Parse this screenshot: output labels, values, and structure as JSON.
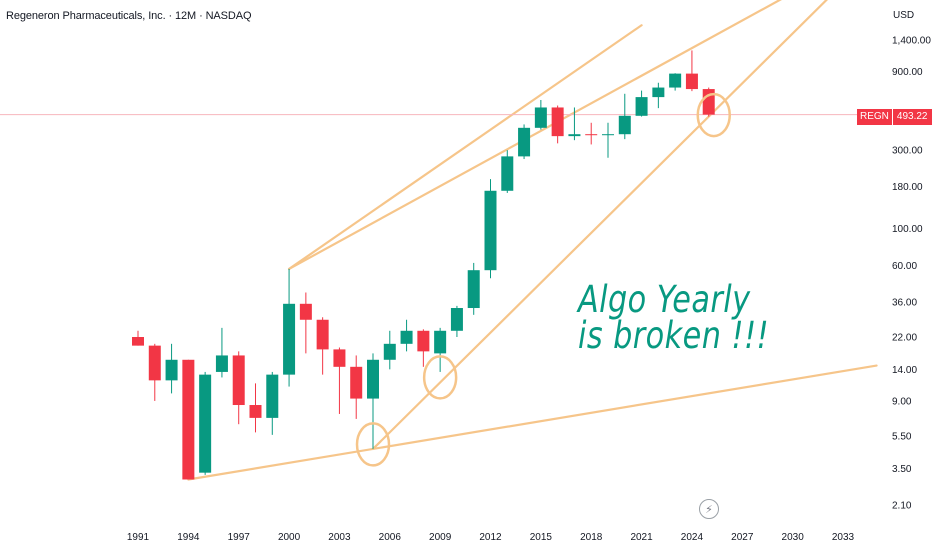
{
  "header": {
    "title": "Regeneron Pharmaceuticals, Inc. · 12M · NASDAQ",
    "currency": "USD"
  },
  "price_tag": {
    "symbol": "REGN",
    "value": "493.22"
  },
  "annotation": {
    "line1": "Algo Yearly",
    "line2": "is broken !!!"
  },
  "icons": {
    "bolt": "lightning-icon"
  },
  "colors": {
    "up": "#089981",
    "down": "#f23645",
    "trendline": "#f6c58a",
    "annotation": "#089981",
    "price_line": "#f7b6bd"
  },
  "chart_data": {
    "type": "candlestick",
    "title": "Regeneron Pharmaceuticals, Inc. · 12M · NASDAQ",
    "y_scale": "log",
    "ylabel": "USD",
    "y_ticks": [
      "1,400.00",
      "900.00",
      "300.00",
      "180.00",
      "100.00",
      "60.00",
      "36.00",
      "22.00",
      "14.00",
      "9.00",
      "5.50",
      "3.50",
      "2.10"
    ],
    "x_ticks": [
      "1991",
      "1994",
      "1997",
      "2000",
      "2003",
      "2006",
      "2009",
      "2012",
      "2015",
      "2018",
      "2021",
      "2024",
      "2027",
      "2030",
      "2033"
    ],
    "last_price": 493.22,
    "candles": [
      {
        "year": 1991,
        "open": 22,
        "high": 24,
        "low": 19.5,
        "close": 19.5
      },
      {
        "year": 1992,
        "open": 19.5,
        "high": 20,
        "low": 9,
        "close": 12
      },
      {
        "year": 1993,
        "open": 12,
        "high": 20,
        "low": 10,
        "close": 16
      },
      {
        "year": 1994,
        "open": 16,
        "high": 16,
        "low": 3,
        "close": 3
      },
      {
        "year": 1995,
        "open": 3.3,
        "high": 13.5,
        "low": 3.2,
        "close": 13
      },
      {
        "year": 1996,
        "open": 13.5,
        "high": 25,
        "low": 12.5,
        "close": 17
      },
      {
        "year": 1997,
        "open": 17,
        "high": 18,
        "low": 6.5,
        "close": 8.5
      },
      {
        "year": 1998,
        "open": 8.5,
        "high": 11.5,
        "low": 5.8,
        "close": 7.1
      },
      {
        "year": 1999,
        "open": 7.1,
        "high": 13.5,
        "low": 5.6,
        "close": 13
      },
      {
        "year": 2000,
        "open": 13,
        "high": 57,
        "low": 11,
        "close": 35
      },
      {
        "year": 2001,
        "open": 35,
        "high": 41,
        "low": 17.5,
        "close": 28
      },
      {
        "year": 2002,
        "open": 28,
        "high": 29,
        "low": 13,
        "close": 18.5
      },
      {
        "year": 2003,
        "open": 18.5,
        "high": 19,
        "low": 7.5,
        "close": 14.5
      },
      {
        "year": 2004,
        "open": 14.5,
        "high": 17,
        "low": 7,
        "close": 9.3
      },
      {
        "year": 2005,
        "open": 9.3,
        "high": 17.5,
        "low": 4.6,
        "close": 16
      },
      {
        "year": 2006,
        "open": 16,
        "high": 24,
        "low": 14,
        "close": 20
      },
      {
        "year": 2007,
        "open": 20,
        "high": 28,
        "low": 18,
        "close": 24
      },
      {
        "year": 2008,
        "open": 24,
        "high": 24.5,
        "low": 14.5,
        "close": 18
      },
      {
        "year": 2009,
        "open": 17.5,
        "high": 25,
        "low": 13.5,
        "close": 24
      },
      {
        "year": 2010,
        "open": 24,
        "high": 34,
        "low": 22,
        "close": 33
      },
      {
        "year": 2011,
        "open": 33,
        "high": 62,
        "low": 30,
        "close": 56
      },
      {
        "year": 2012,
        "open": 56,
        "high": 200,
        "low": 50,
        "close": 170
      },
      {
        "year": 2013,
        "open": 170,
        "high": 300,
        "low": 165,
        "close": 275
      },
      {
        "year": 2014,
        "open": 275,
        "high": 430,
        "low": 265,
        "close": 410
      },
      {
        "year": 2015,
        "open": 410,
        "high": 605,
        "low": 400,
        "close": 545
      },
      {
        "year": 2016,
        "open": 545,
        "high": 560,
        "low": 330,
        "close": 365
      },
      {
        "year": 2017,
        "open": 365,
        "high": 545,
        "low": 345,
        "close": 375
      },
      {
        "year": 2018,
        "open": 375,
        "high": 440,
        "low": 325,
        "close": 370
      },
      {
        "year": 2019,
        "open": 370,
        "high": 440,
        "low": 270,
        "close": 375
      },
      {
        "year": 2020,
        "open": 375,
        "high": 660,
        "low": 350,
        "close": 485
      },
      {
        "year": 2021,
        "open": 485,
        "high": 690,
        "low": 480,
        "close": 630
      },
      {
        "year": 2022,
        "open": 630,
        "high": 770,
        "low": 540,
        "close": 720
      },
      {
        "year": 2023,
        "open": 720,
        "high": 880,
        "low": 690,
        "close": 875
      },
      {
        "year": 2024,
        "open": 875,
        "high": 1210,
        "low": 685,
        "close": 705
      },
      {
        "year": 2025,
        "open": 705,
        "high": 720,
        "low": 480,
        "close": 493.22
      }
    ]
  }
}
